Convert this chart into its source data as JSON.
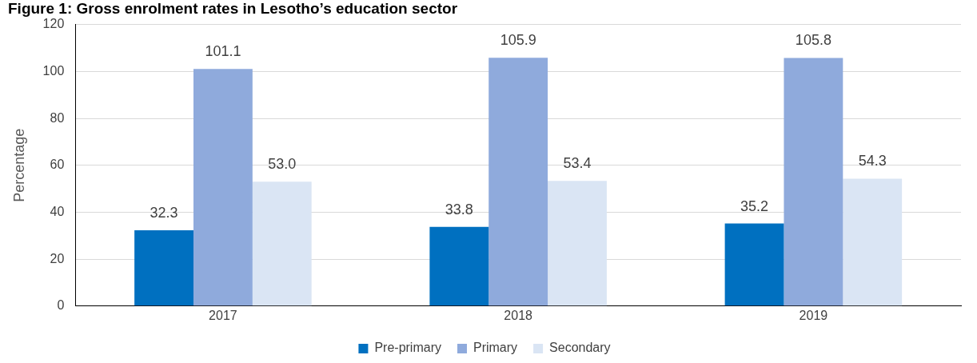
{
  "chart_data": {
    "type": "bar",
    "title": "Figure 1: Gross enrolment rates in Lesotho’s education sector",
    "ylabel": "Percentage",
    "categories": [
      "2017",
      "2018",
      "2019"
    ],
    "series": [
      {
        "name": "Pre-primary",
        "color": "#0070c0",
        "values": [
          32.3,
          33.8,
          35.2
        ],
        "value_labels": [
          "32.3",
          "33.8",
          "35.2"
        ]
      },
      {
        "name": "Primary",
        "color": "#8faadc",
        "values": [
          101.1,
          105.9,
          105.8
        ],
        "value_labels": [
          "101.1",
          "105.9",
          "105.8"
        ]
      },
      {
        "name": "Secondary",
        "color": "#dae5f4",
        "values": [
          53.0,
          53.4,
          54.3
        ],
        "value_labels": [
          "53.0",
          "53.4",
          "54.3"
        ]
      }
    ],
    "ylim": [
      0,
      120
    ],
    "yticks": [
      0,
      20,
      40,
      60,
      80,
      100,
      120
    ],
    "grid": "y",
    "legend": "bottom"
  }
}
